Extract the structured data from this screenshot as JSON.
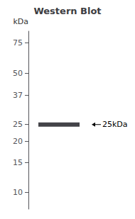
{
  "chart_data": {
    "type": "band",
    "title": "Western Blot",
    "ylabel": "kDa",
    "values": [
      25
    ],
    "color": "#14141a",
    "annotations": [
      {
        "text": "25kDa",
        "y": 25
      }
    ],
    "ylim": [
      8,
      88
    ],
    "yticks": [
      75,
      50,
      37,
      25,
      20,
      15,
      10
    ],
    "log": "y",
    "grid": false,
    "tick_labels": "y"
  }
}
